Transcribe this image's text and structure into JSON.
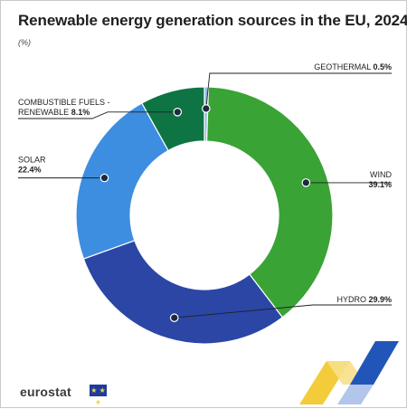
{
  "header": {
    "title": "Renewable energy generation sources in the EU, 2024",
    "unit": "(%)"
  },
  "footer": {
    "brand": "eurostat",
    "flag_icon": "eu-flag-icon"
  },
  "colors": {
    "wind": "#3aa335",
    "hydro": "#2c46a6",
    "solar": "#3d8ee0",
    "combustible": "#0e7444",
    "geothermal": "#8fb8e5",
    "label": "#1f1f1f",
    "accent_yellow": "#f3c525",
    "accent_blue": "#2156b8"
  },
  "chart_data": {
    "type": "pie",
    "style": "donut",
    "start_angle_deg": 0,
    "direction": "clockwise",
    "categories": [
      "GEOTHERMAL",
      "WIND",
      "HYDRO",
      "SOLAR",
      "COMBUSTIBLE FUELS - RENEWABLE"
    ],
    "values": [
      0.5,
      39.1,
      29.9,
      22.4,
      8.1
    ],
    "series": [
      {
        "key": "geothermal",
        "label_lines": [
          "GEOTHERMAL"
        ],
        "value_text": "0.5%",
        "value": 0.5
      },
      {
        "key": "wind",
        "label_lines": [
          "WIND"
        ],
        "value_text": "39.1%",
        "value": 39.1
      },
      {
        "key": "hydro",
        "label_lines": [
          "HYDRO"
        ],
        "value_text": "29.9%",
        "value": 29.9
      },
      {
        "key": "solar",
        "label_lines": [
          "SOLAR"
        ],
        "value_text": "22.4%",
        "value": 22.4
      },
      {
        "key": "combustible",
        "label_lines": [
          "COMBUSTIBLE FUELS -",
          "RENEWABLE"
        ],
        "value_text": "8.1%",
        "value": 8.1
      }
    ]
  }
}
